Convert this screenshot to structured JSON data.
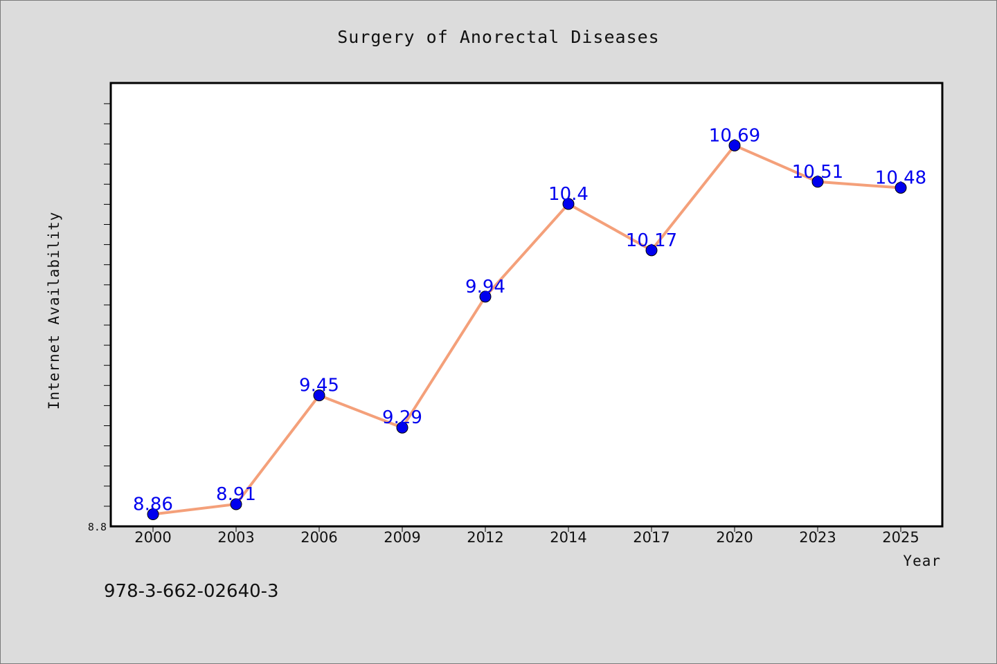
{
  "chart_data": {
    "type": "line",
    "title": "Surgery of Anorectal Diseases",
    "xlabel": "Year",
    "ylabel": "Internet Availability",
    "categories": [
      "2000",
      "2003",
      "2006",
      "2009",
      "2012",
      "2014",
      "2017",
      "2020",
      "2023",
      "2025"
    ],
    "series": [
      {
        "values": [
          8.86,
          8.91,
          9.45,
          9.29,
          9.94,
          10.4,
          10.17,
          10.69,
          10.51,
          10.48
        ],
        "data_labels": [
          "8.86",
          "8.91",
          "9.45",
          "9.29",
          "9.94",
          "10.4",
          "10.17",
          "10.69",
          "10.51",
          "10.48"
        ],
        "line_color": "#f4a07a",
        "marker_color": "#0000ee",
        "label_color": "#0000ee"
      }
    ],
    "ylim": [
      8.8,
      11.0
    ],
    "yticks_labeled": [
      "8.8"
    ],
    "grid": false,
    "legend": "none"
  },
  "annotation": "978-3-662-02640-3",
  "colors": {
    "background": "#dcdcdc",
    "plot_background": "#ffffff",
    "axis": "#000000"
  }
}
